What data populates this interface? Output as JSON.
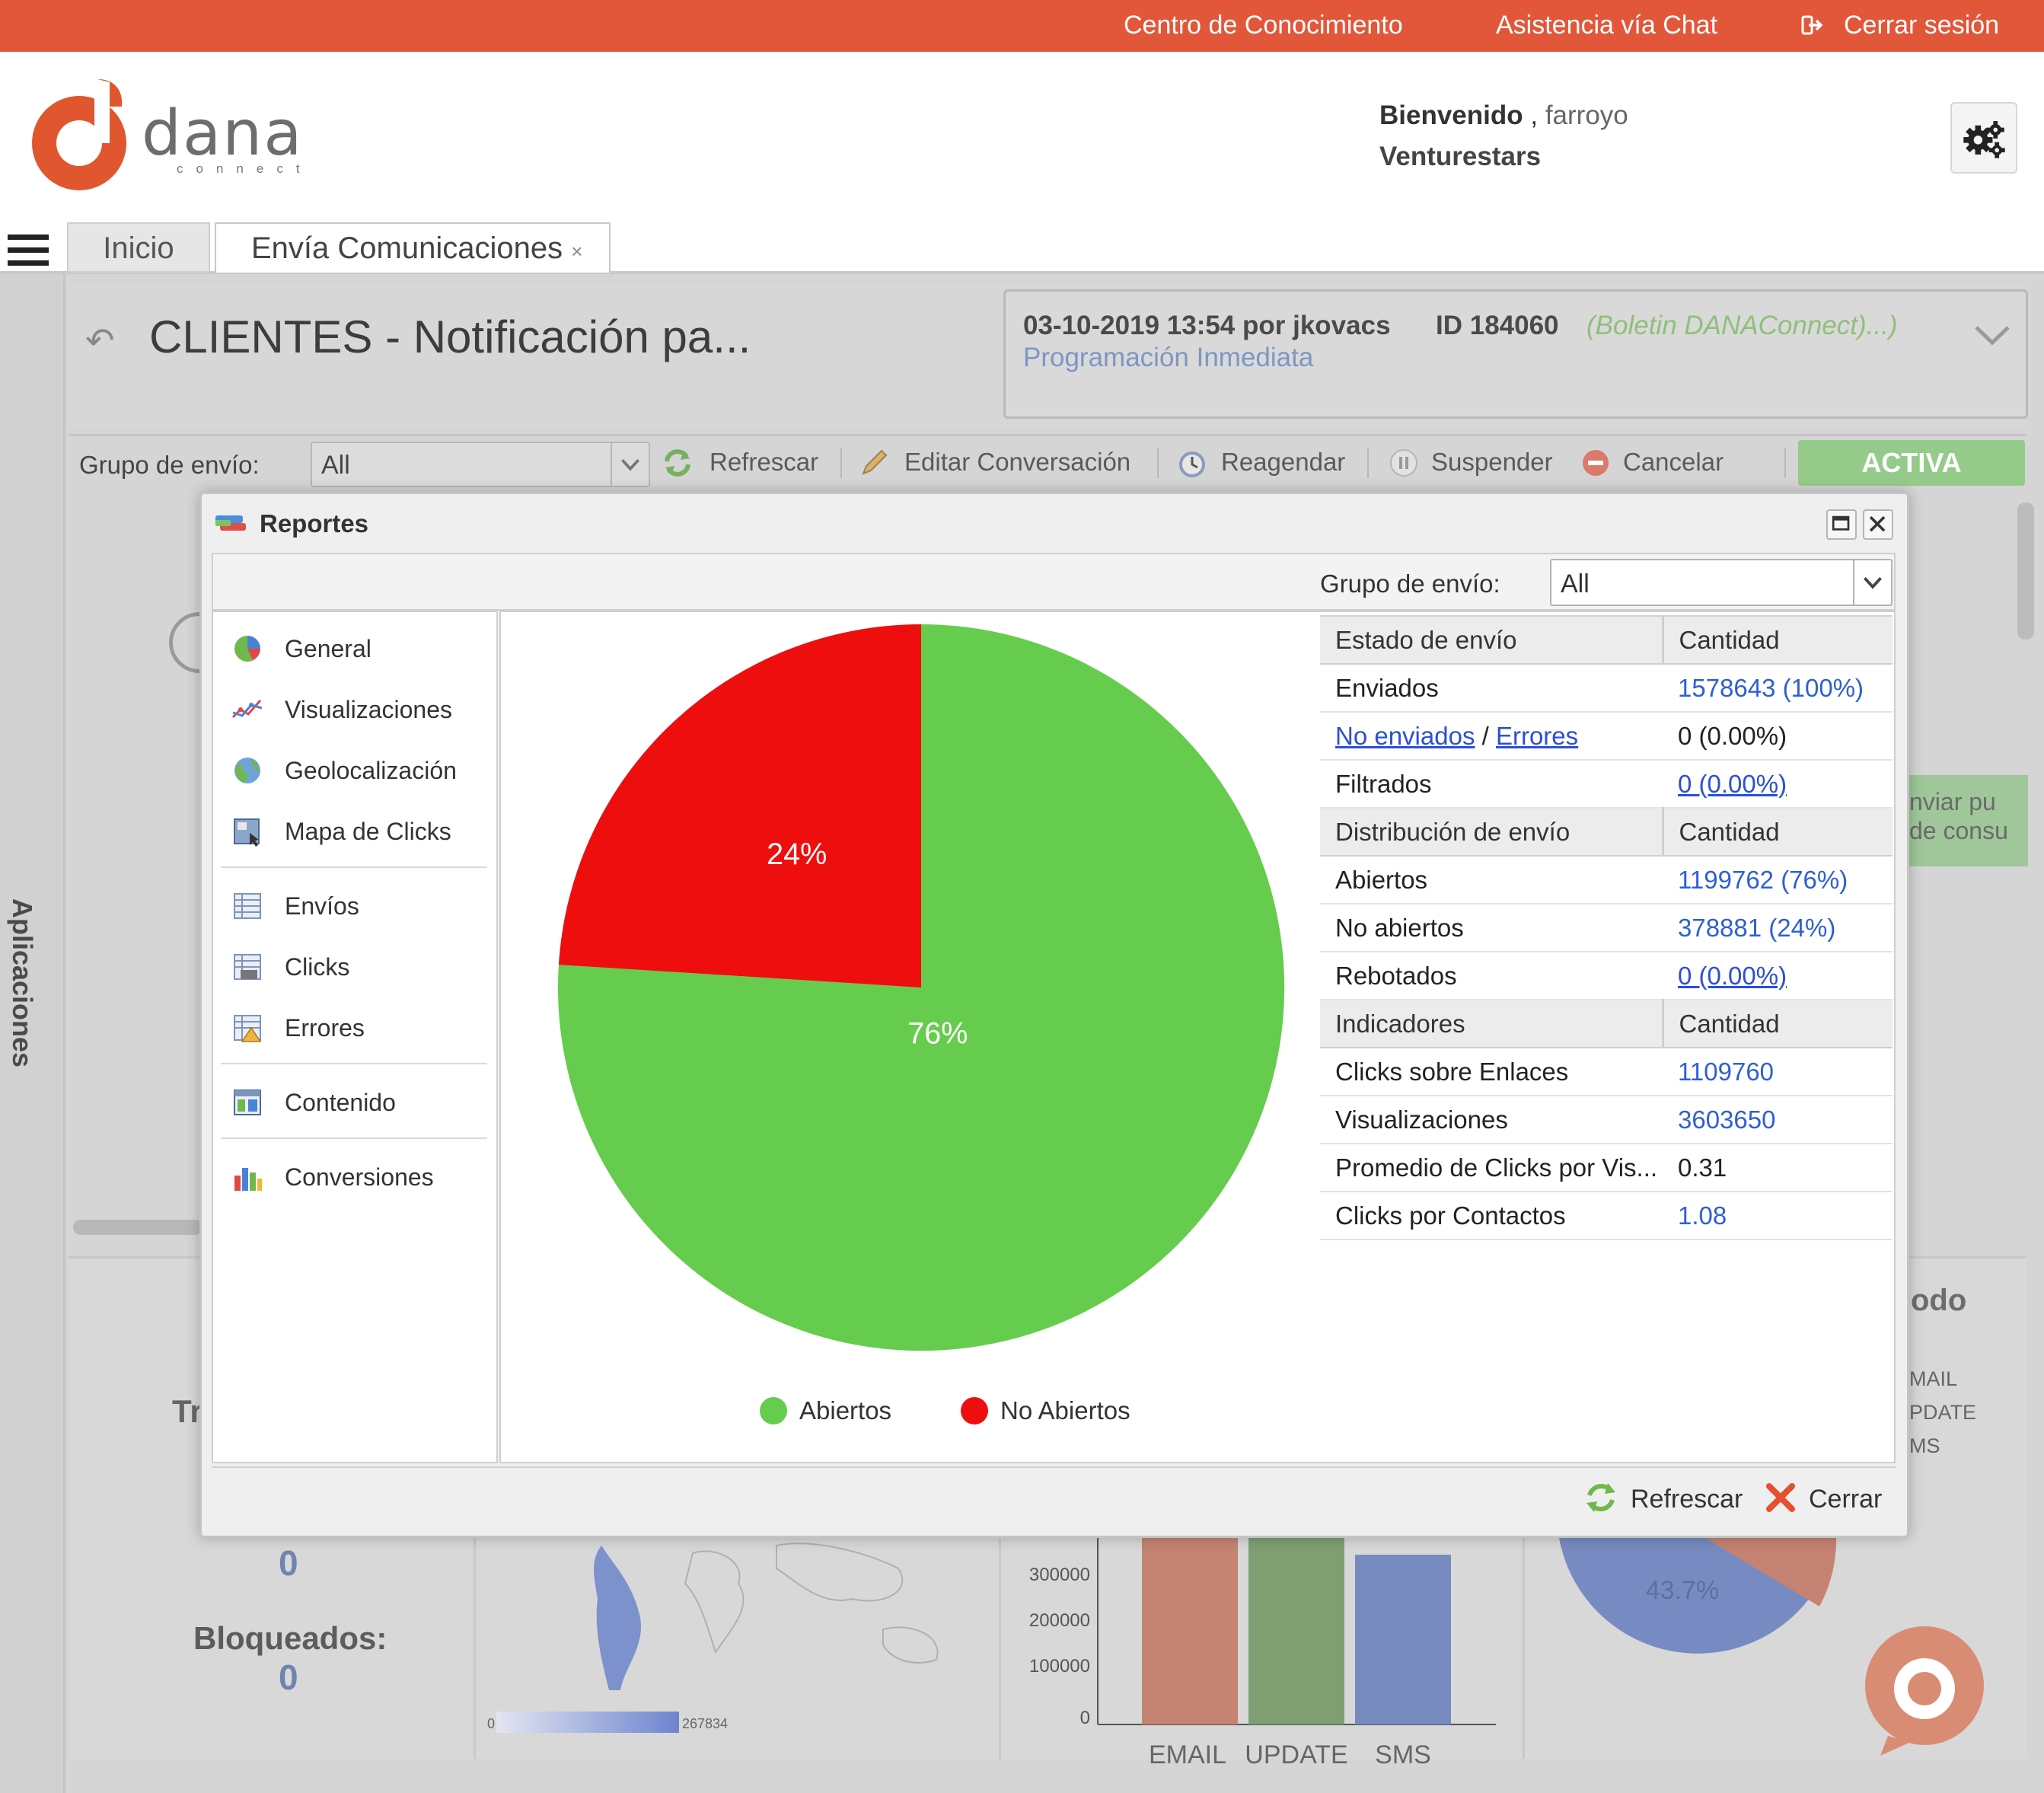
{
  "topbar": {
    "knowledge_center": "Centro de Conocimiento",
    "chat_support": "Asistencia vía Chat",
    "logout": "Cerrar sesión",
    "color": "#e2573a"
  },
  "header": {
    "logo_text": "dana",
    "logo_sub": "connect",
    "welcome_label": "Bienvenido",
    "welcome_sep": " , ",
    "username": "farroyo",
    "company": "Venturestars",
    "settings_icon": "gear-icon"
  },
  "tabs": [
    {
      "label": "Inicio"
    },
    {
      "label": "Envía Comunicaciones",
      "close": "×"
    }
  ],
  "sidebar_rail": {
    "label": "Aplicaciones"
  },
  "page": {
    "title": "CLIENTES - Notificación pa...",
    "info": {
      "date_by": "03-10-2019 13:54 por jkovacs",
      "id": "ID 184060",
      "bulletin": "(Boletin DANAConnect)...)",
      "schedule": "Programación Inmediata"
    },
    "toolbar": {
      "group_label": "Grupo de envío:",
      "group_value": "All",
      "refresh": "Refrescar",
      "edit": "Editar Conversación",
      "reschedule": "Reagendar",
      "suspend": "Suspender",
      "cancel": "Cancelar",
      "status": "ACTIVA"
    }
  },
  "background": {
    "green_text_1": "nviar pu",
    "green_text_2": "de consu",
    "tr": "Tr",
    "zero_1": "0",
    "blocked_label": "Bloqueados:",
    "zero_2": "0",
    "method_label": "odo",
    "legend": [
      "MAIL",
      "PDATE",
      "MS"
    ],
    "map_scale_min": "0",
    "map_scale_max": "267834",
    "bar_ticks": [
      "300000",
      "200000",
      "100000",
      "0"
    ],
    "bar_labels": [
      "EMAIL",
      "UPDATE",
      "SMS"
    ],
    "pie_label": "43.7%"
  },
  "modal": {
    "title": "Reportes",
    "filter_label": "Grupo de envío:",
    "filter_value": "All",
    "nav": [
      {
        "label": "General",
        "icon": "pie-chart-icon"
      },
      {
        "label": "Visualizaciones",
        "icon": "line-chart-icon"
      },
      {
        "label": "Geolocalización",
        "icon": "globe-icon"
      },
      {
        "label": "Mapa de Clicks",
        "icon": "click-map-icon"
      },
      {
        "label": "Envíos",
        "icon": "table-icon"
      },
      {
        "label": "Clicks",
        "icon": "table-click-icon"
      },
      {
        "label": "Errores",
        "icon": "table-warning-icon"
      },
      {
        "label": "Contenido",
        "icon": "content-icon"
      },
      {
        "label": "Conversiones",
        "icon": "bar-chart-icon"
      }
    ],
    "chart_data": {
      "type": "pie",
      "categories": [
        "Abiertos",
        "No Abiertos"
      ],
      "values": [
        76,
        24
      ],
      "colors": [
        "#66cc4d",
        "#ee0e0e"
      ],
      "labels": [
        "76%",
        "24%"
      ],
      "legend_position": "bottom"
    },
    "stats": {
      "section1": {
        "header": "Estado de envío",
        "qty_header": "Cantidad"
      },
      "sent": {
        "label": "Enviados",
        "value": "1578643 (100%)"
      },
      "not_sent": {
        "label_link": "No enviados",
        "sep": " / ",
        "label_link2": "Errores",
        "value": "0 (0.00%)"
      },
      "filtered": {
        "label": "Filtrados",
        "value": "0 (0.00%)"
      },
      "section2": {
        "header": "Distribución de envío",
        "qty_header": "Cantidad"
      },
      "opened": {
        "label": "Abiertos",
        "value": "1199762 (76%)"
      },
      "not_opened": {
        "label": "No abiertos",
        "value": "378881 (24%)"
      },
      "bounced": {
        "label": "Rebotados",
        "value": "0 (0.00%)"
      },
      "section3": {
        "header": "Indicadores",
        "qty_header": "Cantidad"
      },
      "clicks_links": {
        "label": "Clicks sobre Enlaces",
        "value": "1109760"
      },
      "views": {
        "label": "Visualizaciones",
        "value": "3603650"
      },
      "avg_clicks": {
        "label": "Promedio de Clicks por Vis...",
        "value": "0.31"
      },
      "clicks_contacts": {
        "label": "Clicks por Contactos",
        "value": "1.08"
      }
    },
    "footer": {
      "refresh": "Refrescar",
      "close": "Cerrar"
    }
  }
}
